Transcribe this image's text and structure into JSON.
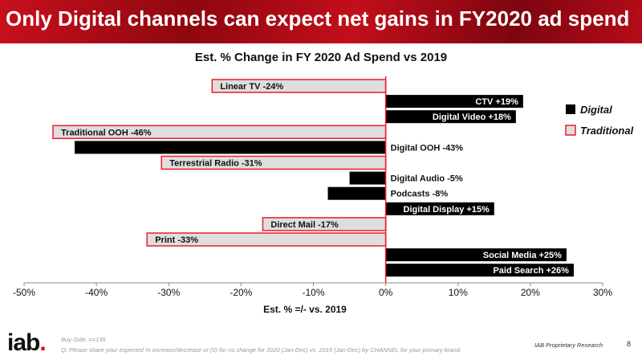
{
  "header": {
    "title": "Only Digital channels can expect net gains in FY2020 ad spend"
  },
  "chart_data": {
    "type": "bar",
    "orientation": "horizontal",
    "title": "Est. % Change in FY 2020 Ad Spend vs 2019",
    "xlabel": "Est. % =/- vs. 2019",
    "ylabel": "",
    "xlim": [
      -50,
      30
    ],
    "xticks": [
      "-50%",
      "-40%",
      "-30%",
      "-20%",
      "-10%",
      "0%",
      "10%",
      "20%",
      "30%"
    ],
    "grid": false,
    "legend_placement": "right",
    "legend": [
      {
        "name": "Digital",
        "color": "#000000"
      },
      {
        "name": "Traditional",
        "color": "#dddddd",
        "border": "#ee1c25"
      }
    ],
    "bars": [
      {
        "label": "Linear TV -24%",
        "value": -24,
        "type": "Traditional"
      },
      {
        "label": "CTV +19%",
        "value": 19,
        "type": "Digital"
      },
      {
        "label": "Digital Video +18%",
        "value": 18,
        "type": "Digital"
      },
      {
        "label": "Traditional OOH -46%",
        "value": -46,
        "type": "Traditional"
      },
      {
        "label": "Digital OOH -43%",
        "value": -43,
        "type": "Digital"
      },
      {
        "label": "Terrestrial Radio -31%",
        "value": -31,
        "type": "Traditional"
      },
      {
        "label": "Digital Audio -5%",
        "value": -5,
        "type": "Digital"
      },
      {
        "label": "Podcasts -8%",
        "value": -8,
        "type": "Digital"
      },
      {
        "label": "Digital Display +15%",
        "value": 15,
        "type": "Digital"
      },
      {
        "label": "Direct Mail -17%",
        "value": -17,
        "type": "Traditional"
      },
      {
        "label": "Print -33%",
        "value": -33,
        "type": "Traditional"
      },
      {
        "label": "Social Media +25%",
        "value": 25,
        "type": "Digital"
      },
      {
        "label": "Paid Search +26%",
        "value": 26,
        "type": "Digital"
      }
    ]
  },
  "footer": {
    "logo": "iab.",
    "sample": "Buy-Side, n=135",
    "question": "Q: Please share your expected % increase/decrease or (0) for no change for 2020 (Jan-Dec) vs. 2019 (Jan-Dec) by CHANNEL for your primary brand.",
    "source": "IAB Proprietary Research",
    "page": "8"
  }
}
